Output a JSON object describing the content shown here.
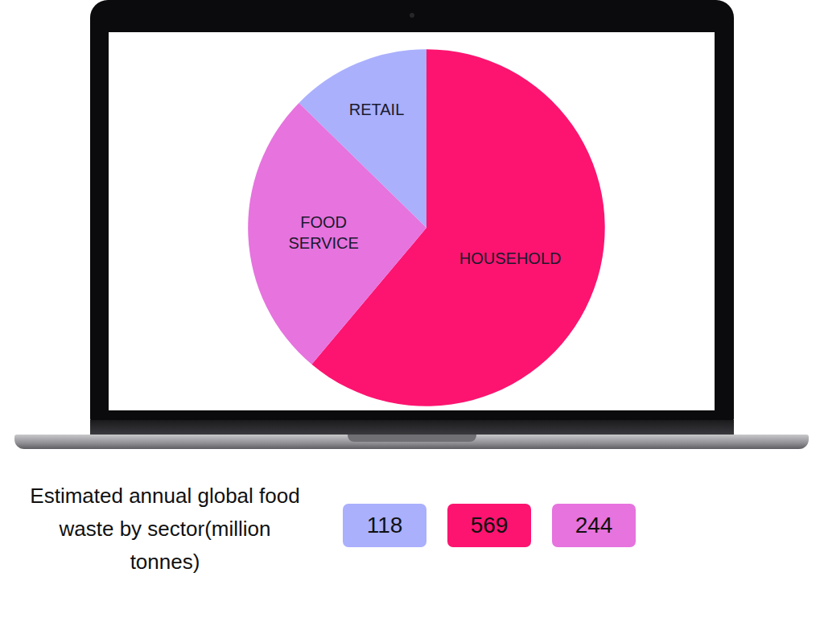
{
  "chart_data": {
    "type": "pie",
    "title": "Estimated annual global food waste by sector(million tonnes)",
    "categories": [
      "RETAIL",
      "HOUSEHOLD",
      "FOOD SERVICE"
    ],
    "values": [
      118,
      569,
      244
    ],
    "colors": [
      "#aab0fc",
      "#fc1470",
      "#e673de"
    ]
  }
}
